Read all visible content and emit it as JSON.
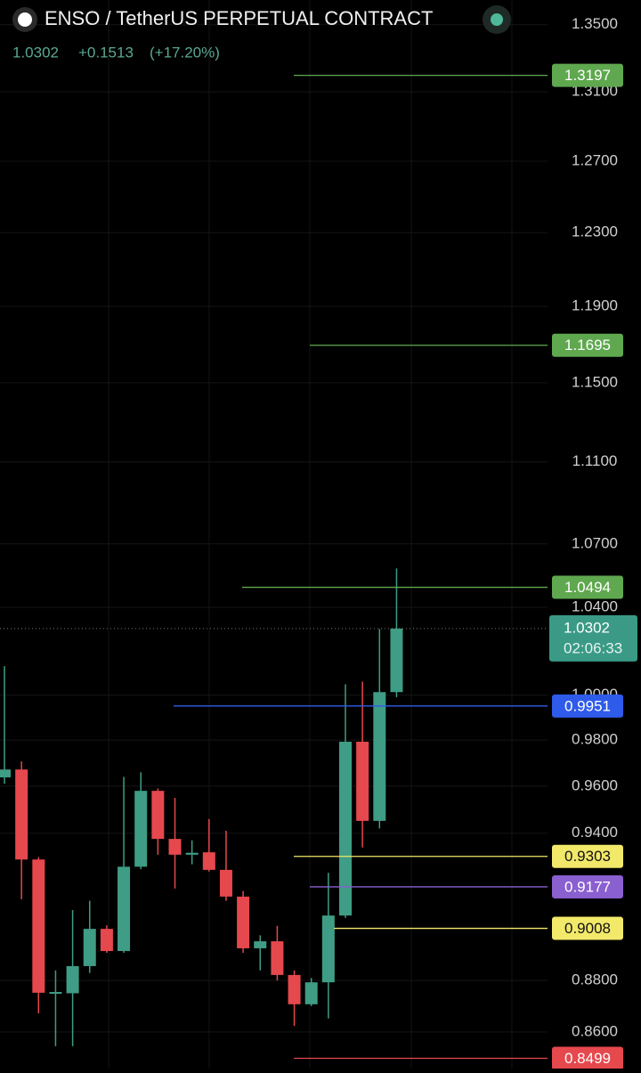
{
  "chart_data": {
    "type": "candlestick",
    "title": "ENSO / TetherUS PERPETUAL CONTRACT",
    "last": "1.0302",
    "change": "+0.1513",
    "change_pct": "(+17.20%)",
    "countdown": "02:06:33",
    "current_price": 1.0302,
    "log_scale": true,
    "grid": true,
    "up_color": "#3f9c85",
    "down_color": "#e5484d",
    "ylim": [
      0.846,
      1.365
    ],
    "yticks": [
      {
        "value": 1.35,
        "label": "1.3500"
      },
      {
        "value": 1.31,
        "label": "1.3100"
      },
      {
        "value": 1.27,
        "label": "1.2700"
      },
      {
        "value": 1.23,
        "label": "1.2300"
      },
      {
        "value": 1.19,
        "label": "1.1900"
      },
      {
        "value": 1.15,
        "label": "1.1500"
      },
      {
        "value": 1.11,
        "label": "1.1100"
      },
      {
        "value": 1.07,
        "label": "1.0700"
      },
      {
        "value": 1.04,
        "label": "1.0400"
      },
      {
        "value": 1.0,
        "label": "1.0000"
      },
      {
        "value": 0.98,
        "label": "0.9800"
      },
      {
        "value": 0.96,
        "label": "0.9600"
      },
      {
        "value": 0.94,
        "label": "0.9400"
      },
      {
        "value": 0.88,
        "label": "0.8800"
      },
      {
        "value": 0.86,
        "label": "0.8600"
      }
    ],
    "categories": [
      null,
      null,
      null,
      null,
      null,
      null,
      null,
      null,
      null,
      null,
      null,
      null,
      null,
      null,
      null,
      null,
      null,
      null,
      null,
      null,
      null,
      null,
      null,
      null
    ],
    "open": [
      0.9638,
      0.9672,
      0.929,
      0.8752,
      0.875,
      0.8857,
      0.9006,
      0.8917,
      0.926,
      0.958,
      0.9376,
      0.931,
      0.932,
      0.9247,
      0.9137,
      0.8928,
      0.8956,
      0.8822,
      0.8707,
      0.8793,
      0.906,
      0.9793,
      0.9452,
      1.0013
    ],
    "high": [
      1.013,
      0.9707,
      0.93,
      0.884,
      0.9082,
      0.912,
      0.902,
      0.964,
      0.966,
      0.959,
      0.955,
      0.937,
      0.946,
      0.941,
      0.916,
      0.898,
      0.9018,
      0.884,
      0.881,
      0.9235,
      1.0048,
      1.006,
      1.03,
      1.0583
    ],
    "low": [
      0.961,
      0.9126,
      0.8672,
      0.8545,
      0.8545,
      0.883,
      0.891,
      0.891,
      0.925,
      0.931,
      0.917,
      0.927,
      0.924,
      0.912,
      0.891,
      0.884,
      0.88,
      0.8623,
      0.87,
      0.8652,
      0.905,
      0.934,
      0.942,
      0.999
    ],
    "close": [
      0.9672,
      0.929,
      0.8752,
      0.8755,
      0.8857,
      0.9006,
      0.8917,
      0.926,
      0.958,
      0.9376,
      0.931,
      0.9318,
      0.9247,
      0.9137,
      0.8928,
      0.8956,
      0.8822,
      0.8707,
      0.8793,
      0.906,
      0.9793,
      0.9452,
      1.0013,
      1.0302
    ],
    "price_lines": [
      {
        "value": 1.3197,
        "color": "#5fa84f"
      },
      {
        "value": 1.1695,
        "color": "#5fa84f"
      },
      {
        "value": 1.0494,
        "color": "#5fa84f"
      },
      {
        "value": 0.9951,
        "color": "#2f5bea"
      },
      {
        "value": 0.9303,
        "color": "#f2e86a"
      },
      {
        "value": 0.9177,
        "color": "#8a5fcf"
      },
      {
        "value": 0.9008,
        "color": "#f2e86a"
      },
      {
        "value": 0.8499,
        "color": "#e5484d"
      }
    ]
  }
}
